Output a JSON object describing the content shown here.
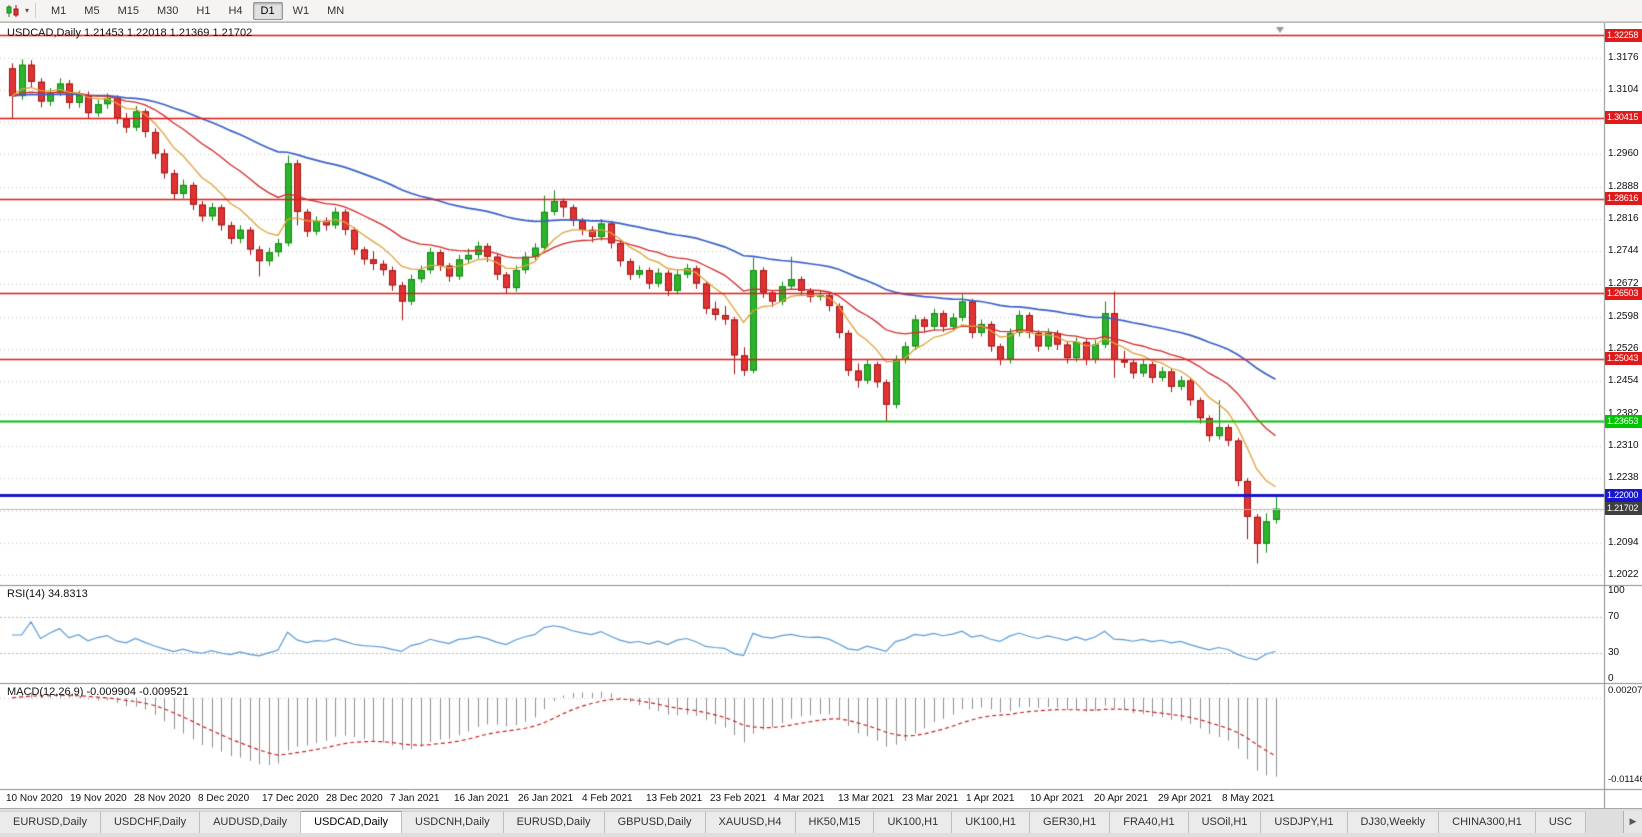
{
  "toolbar": {
    "timeframes": [
      "M1",
      "M5",
      "M15",
      "M30",
      "H1",
      "H4",
      "D1",
      "W1",
      "MN"
    ],
    "active_timeframe": "D1",
    "dropdown_icon": "▾"
  },
  "chart": {
    "title_full": "USDCAD,Daily  1.21453 1.22018 1.21369 1.21702",
    "symbol": "USDCAD",
    "period": "Daily"
  },
  "rsi": {
    "label": "RSI(14) 34.8313",
    "levels": [
      "100",
      "70",
      "30",
      "0"
    ],
    "level_values": [
      100,
      70,
      30,
      0
    ]
  },
  "macd": {
    "label": "MACD(12,26,9) -0.009904 -0.009521",
    "scale_top": "0.002074",
    "scale_bottom": "-0.011462"
  },
  "tabs": {
    "items": [
      "EURUSD,Daily",
      "USDCHF,Daily",
      "AUDUSD,Daily",
      "USDCAD,Daily",
      "USDCNH,Daily",
      "EURUSD,Daily",
      "GBPUSD,Daily",
      "XAUUSD,H4",
      "HK50,M15",
      "UK100,H1",
      "UK100,H1",
      "GER30,H1",
      "FRA40,H1",
      "USOil,H1",
      "USDJPY,H1",
      "DJ30,Weekly",
      "CHINA300,H1",
      "USC"
    ],
    "active_index": 3,
    "scroll_right_icon": "▶"
  },
  "colors": {
    "up": "#2db32d",
    "up_border": "#128a12",
    "down": "#e03434",
    "down_border": "#a31414",
    "grid": "#c9c9c9",
    "ma_blue": "#3b62c8",
    "ma_red": "#d42c2c",
    "ma_orange": "#e0a23c",
    "rsi_line": "#5b9cd6",
    "rsi_level": "#bcbcbc",
    "macd_bar": "#8f8f8f",
    "macd_signal": "#cc2222",
    "line_red": "#df1a1a",
    "line_green": "#00c400",
    "line_blue": "#1717cf",
    "bid_line": "#b8b8b8",
    "bid_box": "#3f3f3f",
    "separator": "#8c8c8c"
  },
  "chart_data": {
    "type": "candlestick",
    "symbol": "USDCAD",
    "timeframe": "Daily",
    "last_ohlc": {
      "open": 1.21453,
      "high": 1.22018,
      "low": 1.21369,
      "close": 1.21702
    },
    "price_range": {
      "max": 1.3253,
      "min": 1.2
    },
    "y_ticks": [
      {
        "label": "1.3176",
        "value": 1.3176
      },
      {
        "label": "1.3104",
        "value": 1.3104
      },
      {
        "label": "1.2960",
        "value": 1.296
      },
      {
        "label": "1.2888",
        "value": 1.2888
      },
      {
        "label": "1.2816",
        "value": 1.2816
      },
      {
        "label": "1.2744",
        "value": 1.2744
      },
      {
        "label": "1.2672",
        "value": 1.2672
      },
      {
        "label": "1.2598",
        "value": 1.2598
      },
      {
        "label": "1.2526",
        "value": 1.2526
      },
      {
        "label": "1.2454",
        "value": 1.2454
      },
      {
        "label": "1.2382",
        "value": 1.2382
      },
      {
        "label": "1.2310",
        "value": 1.231
      },
      {
        "label": "1.2238",
        "value": 1.2238
      },
      {
        "label": "1.2094",
        "value": 1.2094
      },
      {
        "label": "1.2022",
        "value": 1.2022
      }
    ],
    "grid_only": [
      1.3032,
      1.2166
    ],
    "horizontal_lines": [
      {
        "label": "1.32258",
        "price": 1.32258,
        "color": "red"
      },
      {
        "label": "1.30415",
        "price": 1.30415,
        "color": "red"
      },
      {
        "label": "1.28616",
        "price": 1.28616,
        "color": "red"
      },
      {
        "label": "1.26503",
        "price": 1.26503,
        "color": "red"
      },
      {
        "label": "1.25043",
        "price": 1.25043,
        "color": "red"
      },
      {
        "label": "1.23653",
        "price": 1.23653,
        "color": "green"
      },
      {
        "label": "1.22000",
        "price": 1.22,
        "color": "blue"
      },
      {
        "label": "1.21702",
        "price": 1.21702,
        "color": "bid"
      }
    ],
    "x_labels": [
      "10 Nov 2020",
      "19 Nov 2020",
      "28 Nov 2020",
      "8 Dec 2020",
      "17 Dec 2020",
      "28 Dec 2020",
      "7 Jan 2021",
      "16 Jan 2021",
      "26 Jan 2021",
      "4 Feb 2021",
      "13 Feb 2021",
      "23 Feb 2021",
      "4 Mar 2021",
      "13 Mar 2021",
      "23 Mar 2021",
      "1 Apr 2021",
      "10 Apr 2021",
      "20 Apr 2021",
      "29 Apr 2021",
      "8 May 2021"
    ],
    "moving_averages": [
      {
        "name": "slow-ma",
        "period": 50,
        "color_key": "ma_blue",
        "width": 1.7
      },
      {
        "name": "mid-ma",
        "period": 20,
        "color_key": "ma_red",
        "width": 1.3
      },
      {
        "name": "fast-ma",
        "period": 8,
        "color_key": "ma_orange",
        "width": 1.3
      }
    ],
    "rsi": {
      "period": 14,
      "current": 34.8313
    },
    "macd": {
      "fast": 12,
      "slow": 26,
      "signal": 9,
      "current": -0.009904,
      "current_signal": -0.009521,
      "scale_max": 0.002074,
      "scale_min": -0.011462
    },
    "candles": [
      [
        1.3152,
        1.3163,
        1.304,
        1.309
      ],
      [
        1.309,
        1.3172,
        1.3082,
        1.316
      ],
      [
        1.316,
        1.317,
        1.311,
        1.3122
      ],
      [
        1.3122,
        1.313,
        1.3065,
        1.3078
      ],
      [
        1.3078,
        1.3108,
        1.3068,
        1.3098
      ],
      [
        1.3098,
        1.313,
        1.309,
        1.3118
      ],
      [
        1.3118,
        1.3126,
        1.3062,
        1.3075
      ],
      [
        1.3075,
        1.3102,
        1.3064,
        1.3092
      ],
      [
        1.3092,
        1.31,
        1.304,
        1.3052
      ],
      [
        1.3052,
        1.3082,
        1.3044,
        1.3072
      ],
      [
        1.3072,
        1.3096,
        1.3062,
        1.3086
      ],
      [
        1.3086,
        1.3092,
        1.3028,
        1.304
      ],
      [
        1.304,
        1.3052,
        1.3008,
        1.302
      ],
      [
        1.302,
        1.3068,
        1.3012,
        1.3056
      ],
      [
        1.3056,
        1.3062,
        1.2998,
        1.301
      ],
      [
        1.301,
        1.3018,
        1.295,
        1.2962
      ],
      [
        1.2962,
        1.2972,
        1.2906,
        1.2918
      ],
      [
        1.2918,
        1.2926,
        1.286,
        1.2872
      ],
      [
        1.2872,
        1.2904,
        1.2862,
        1.2892
      ],
      [
        1.2892,
        1.2898,
        1.2836,
        1.2848
      ],
      [
        1.2848,
        1.2856,
        1.281,
        1.2822
      ],
      [
        1.2822,
        1.2852,
        1.2812,
        1.2842
      ],
      [
        1.2842,
        1.2848,
        1.279,
        1.2802
      ],
      [
        1.2802,
        1.281,
        1.276,
        1.2772
      ],
      [
        1.2772,
        1.2802,
        1.2762,
        1.2792
      ],
      [
        1.2792,
        1.2798,
        1.2736,
        1.2748
      ],
      [
        1.2748,
        1.2756,
        1.2688,
        1.2722
      ],
      [
        1.2722,
        1.2752,
        1.2712,
        1.2742
      ],
      [
        1.2742,
        1.2772,
        1.2732,
        1.2762
      ],
      [
        1.2762,
        1.2957,
        1.2755,
        1.294
      ],
      [
        1.294,
        1.2948,
        1.2802,
        1.2832
      ],
      [
        1.2832,
        1.2838,
        1.2776,
        1.2788
      ],
      [
        1.2788,
        1.2822,
        1.278,
        1.2812
      ],
      [
        1.2812,
        1.282,
        1.279,
        1.2802
      ],
      [
        1.2802,
        1.2842,
        1.2794,
        1.2832
      ],
      [
        1.2832,
        1.2838,
        1.278,
        1.2792
      ],
      [
        1.2792,
        1.2798,
        1.2736,
        1.2748
      ],
      [
        1.2748,
        1.2754,
        1.2714,
        1.2726
      ],
      [
        1.2726,
        1.2744,
        1.2702,
        1.2716
      ],
      [
        1.2716,
        1.2724,
        1.269,
        1.2702
      ],
      [
        1.2702,
        1.271,
        1.2656,
        1.2668
      ],
      [
        1.2668,
        1.2676,
        1.259,
        1.2632
      ],
      [
        1.2632,
        1.2692,
        1.2624,
        1.2682
      ],
      [
        1.2682,
        1.2712,
        1.2674,
        1.2702
      ],
      [
        1.2702,
        1.2752,
        1.2694,
        1.2742
      ],
      [
        1.2742,
        1.2748,
        1.27,
        1.2712
      ],
      [
        1.2712,
        1.2718,
        1.2676,
        1.2688
      ],
      [
        1.2688,
        1.2736,
        1.268,
        1.2726
      ],
      [
        1.2726,
        1.275,
        1.2718,
        1.2736
      ],
      [
        1.2736,
        1.2766,
        1.2728,
        1.2756
      ],
      [
        1.2756,
        1.2762,
        1.272,
        1.2732
      ],
      [
        1.2732,
        1.2738,
        1.268,
        1.2692
      ],
      [
        1.2692,
        1.2698,
        1.265,
        1.2662
      ],
      [
        1.2662,
        1.2712,
        1.2654,
        1.2702
      ],
      [
        1.2702,
        1.2742,
        1.2694,
        1.2732
      ],
      [
        1.2732,
        1.2762,
        1.2724,
        1.2752
      ],
      [
        1.2752,
        1.2868,
        1.2744,
        1.2832
      ],
      [
        1.2832,
        1.288,
        1.2824,
        1.2856
      ],
      [
        1.2856,
        1.2862,
        1.282,
        1.2842
      ],
      [
        1.2842,
        1.2848,
        1.28,
        1.2812
      ],
      [
        1.2812,
        1.2818,
        1.278,
        1.2792
      ],
      [
        1.2792,
        1.28,
        1.2764,
        1.2776
      ],
      [
        1.2776,
        1.2816,
        1.2768,
        1.2806
      ],
      [
        1.2806,
        1.2812,
        1.275,
        1.2762
      ],
      [
        1.2762,
        1.2768,
        1.271,
        1.2722
      ],
      [
        1.2722,
        1.2728,
        1.268,
        1.2692
      ],
      [
        1.2692,
        1.2712,
        1.2684,
        1.2702
      ],
      [
        1.2702,
        1.2708,
        1.266,
        1.2672
      ],
      [
        1.2672,
        1.2706,
        1.2664,
        1.2696
      ],
      [
        1.2696,
        1.2702,
        1.2644,
        1.2656
      ],
      [
        1.2656,
        1.2702,
        1.2648,
        1.2692
      ],
      [
        1.2692,
        1.2716,
        1.2684,
        1.2706
      ],
      [
        1.2706,
        1.2712,
        1.266,
        1.2672
      ],
      [
        1.2672,
        1.2678,
        1.2604,
        1.2616
      ],
      [
        1.2616,
        1.2632,
        1.259,
        1.2602
      ],
      [
        1.2602,
        1.2622,
        1.258,
        1.2592
      ],
      [
        1.2592,
        1.2598,
        1.247,
        1.2512
      ],
      [
        1.2512,
        1.253,
        1.2466,
        1.2478
      ],
      [
        1.2478,
        1.273,
        1.2472,
        1.2702
      ],
      [
        1.2702,
        1.2708,
        1.264,
        1.2652
      ],
      [
        1.2652,
        1.2658,
        1.262,
        1.2632
      ],
      [
        1.2632,
        1.2676,
        1.2624,
        1.2666
      ],
      [
        1.2666,
        1.2732,
        1.2658,
        1.2682
      ],
      [
        1.2682,
        1.2688,
        1.2644,
        1.2656
      ],
      [
        1.2656,
        1.2662,
        1.263,
        1.2642
      ],
      [
        1.2642,
        1.2656,
        1.2634,
        1.2646
      ],
      [
        1.2646,
        1.2652,
        1.261,
        1.2622
      ],
      [
        1.2622,
        1.2628,
        1.255,
        1.2562
      ],
      [
        1.2562,
        1.2568,
        1.2466,
        1.2478
      ],
      [
        1.2478,
        1.2494,
        1.244,
        1.2456
      ],
      [
        1.2456,
        1.2502,
        1.2448,
        1.2492
      ],
      [
        1.2492,
        1.2498,
        1.244,
        1.2452
      ],
      [
        1.2452,
        1.2458,
        1.2365,
        1.2402
      ],
      [
        1.2402,
        1.2512,
        1.2394,
        1.2502
      ],
      [
        1.2502,
        1.2542,
        1.2494,
        1.2532
      ],
      [
        1.2532,
        1.2602,
        1.2524,
        1.2592
      ],
      [
        1.2592,
        1.2598,
        1.2564,
        1.2576
      ],
      [
        1.2576,
        1.2616,
        1.2568,
        1.2606
      ],
      [
        1.2606,
        1.2612,
        1.2564,
        1.2576
      ],
      [
        1.2576,
        1.2606,
        1.2568,
        1.2596
      ],
      [
        1.2596,
        1.2648,
        1.2588,
        1.2632
      ],
      [
        1.2632,
        1.2638,
        1.255,
        1.2562
      ],
      [
        1.2562,
        1.2592,
        1.2554,
        1.2582
      ],
      [
        1.2582,
        1.2588,
        1.252,
        1.2532
      ],
      [
        1.2532,
        1.2538,
        1.249,
        1.2502
      ],
      [
        1.2502,
        1.2572,
        1.2494,
        1.2562
      ],
      [
        1.2562,
        1.2612,
        1.2554,
        1.2602
      ],
      [
        1.2602,
        1.2608,
        1.255,
        1.2562
      ],
      [
        1.2562,
        1.2568,
        1.252,
        1.2532
      ],
      [
        1.2532,
        1.2572,
        1.2524,
        1.2562
      ],
      [
        1.2562,
        1.2568,
        1.2524,
        1.2536
      ],
      [
        1.2536,
        1.2542,
        1.2494,
        1.2506
      ],
      [
        1.2506,
        1.2552,
        1.2498,
        1.2542
      ],
      [
        1.2542,
        1.2548,
        1.249,
        1.2502
      ],
      [
        1.2502,
        1.2546,
        1.2494,
        1.2536
      ],
      [
        1.2536,
        1.2632,
        1.2528,
        1.2606
      ],
      [
        1.2606,
        1.2654,
        1.2462,
        1.2502
      ],
      [
        1.2502,
        1.2522,
        1.2484,
        1.2496
      ],
      [
        1.2496,
        1.2502,
        1.246,
        1.2472
      ],
      [
        1.2472,
        1.2502,
        1.2464,
        1.2492
      ],
      [
        1.2492,
        1.2498,
        1.245,
        1.2462
      ],
      [
        1.2462,
        1.2486,
        1.2454,
        1.2476
      ],
      [
        1.2476,
        1.2482,
        1.243,
        1.2442
      ],
      [
        1.2442,
        1.2466,
        1.2434,
        1.2456
      ],
      [
        1.2456,
        1.2462,
        1.24,
        1.2412
      ],
      [
        1.2412,
        1.2418,
        1.236,
        1.2372
      ],
      [
        1.2372,
        1.2378,
        1.232,
        1.2332
      ],
      [
        1.2332,
        1.2412,
        1.2324,
        1.2352
      ],
      [
        1.2352,
        1.2358,
        1.231,
        1.2322
      ],
      [
        1.2322,
        1.2328,
        1.222,
        1.2232
      ],
      [
        1.2232,
        1.2238,
        1.2102,
        1.2152
      ],
      [
        1.2152,
        1.2158,
        1.2048,
        1.2092
      ],
      [
        1.2092,
        1.216,
        1.2072,
        1.2142
      ],
      [
        1.21453,
        1.22018,
        1.21369,
        1.21702
      ]
    ]
  }
}
